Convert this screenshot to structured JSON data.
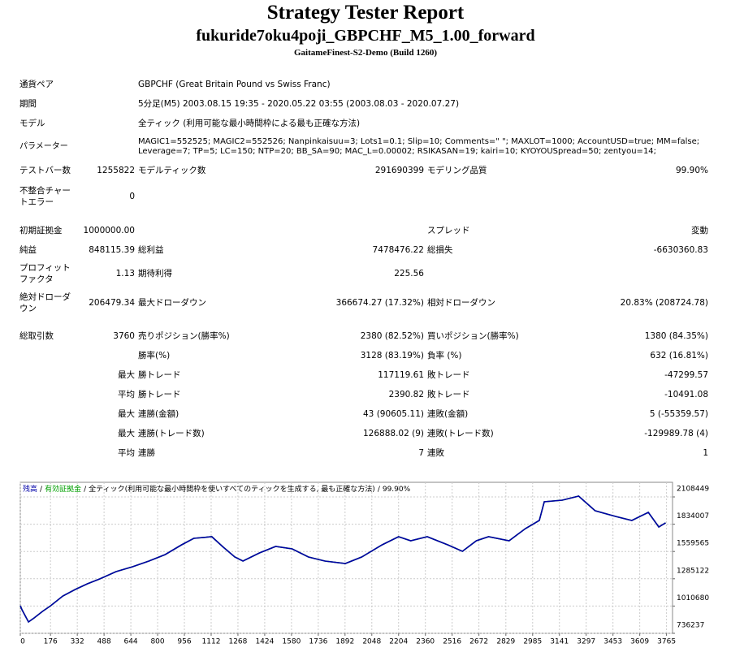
{
  "header": {
    "title": "Strategy Tester Report",
    "subtitle": "fukuride7oku4poji_GBPCHF_M5_1.00_forward",
    "build": "GaitameFinest-S2-Demo (Build 1260)"
  },
  "table": {
    "rows": [
      [
        "通貨ペア",
        "GBPCHF (Great Britain Pound vs Swiss Franc)"
      ],
      [
        "期間",
        "5分足(M5) 2003.08.15 19:35 - 2020.05.22 03:55 (2003.08.03 - 2020.07.27)"
      ],
      [
        "モデル",
        "全ティック (利用可能な最小時間枠による最も正確な方法)"
      ],
      [
        "パラメーター",
        "MAGIC1=552525; MAGIC2=552526; Nanpinkaisuu=3; Lots1=0.1; Slip=10; Comments=\" \"; MAXLOT=1000; AccountUSD=true; MM=false; Leverage=7; TP=5; LC=150; NTP=20; BB_SA=90; MAC_L=0.00002; RSIKASAN=19; kairi=10; KYOYOUSpread=50; zentyou=14;"
      ],
      [
        "テストバー数",
        "1255822",
        "モデルティック数",
        "291690399",
        "モデリング品質",
        "99.90%"
      ],
      [
        "不整合チャートエラー",
        "0"
      ],
      [
        "初期証拠金",
        "1000000.00",
        "スプレッド",
        "変動"
      ],
      [
        "純益",
        "848115.39",
        "総利益",
        "7478476.22",
        "総損失",
        "-6630360.83"
      ],
      [
        "プロフィットファクタ",
        "1.13",
        "期待利得",
        "225.56"
      ],
      [
        "絶対ドローダウン",
        "206479.34",
        "最大ドローダウン",
        "366674.27 (17.32%)",
        "相対ドローダウン",
        "20.83% (208724.78)"
      ],
      [
        "総取引数",
        "3760",
        "売りポジション(勝率%)",
        "2380 (82.52%)",
        "買いポジション(勝率%)",
        "1380 (84.35%)"
      ],
      [
        "勝率(%)",
        "3128 (83.19%)",
        "負率 (%)",
        "632 (16.81%)"
      ],
      [
        "最大",
        "勝トレード",
        "117119.61",
        "敗トレード",
        "-47299.57"
      ],
      [
        "平均",
        "勝トレード",
        "2390.82",
        "敗トレード",
        "-10491.08"
      ],
      [
        "最大",
        "連勝(金額)",
        "43 (90605.11)",
        "連敗(金額)",
        "5 (-55359.57)"
      ],
      [
        "最大",
        "連勝(トレード数)",
        "126888.02 (9)",
        "連敗(トレード数)",
        "-129989.78 (4)"
      ],
      [
        "平均",
        "連勝",
        "7",
        "連敗",
        "1"
      ]
    ]
  },
  "chart_data": {
    "type": "line",
    "separator": "/",
    "note": "全ティック(利用可能な最小時間枠を使いすべてのティックを生成する, 最も正確な方法)",
    "quality": "99.90%",
    "x": [
      0,
      10,
      48,
      81,
      129,
      177,
      248,
      320,
      391,
      463,
      558,
      654,
      749,
      844,
      940,
      1011,
      1116,
      1178,
      1250,
      1297,
      1393,
      1488,
      1584,
      1679,
      1775,
      1894,
      1989,
      2108,
      2204,
      2275,
      2371,
      2490,
      2576,
      2657,
      2728,
      2848,
      2943,
      3024,
      3053,
      3158,
      3253,
      3349,
      3468,
      3563,
      3659,
      3720,
      3760
    ],
    "series": [
      {
        "name": "有効証拠金",
        "color": "#00a000",
        "values": [
          1013900,
          973000,
          850600,
          891400,
          956800,
          1013900,
          1112000,
          1177300,
          1234500,
          1283500,
          1357000,
          1406000,
          1463200,
          1528500,
          1626500,
          1692000,
          1708200,
          1610200,
          1504000,
          1463200,
          1544900,
          1610200,
          1585800,
          1504000,
          1463200,
          1438700,
          1504000,
          1626500,
          1708200,
          1667400,
          1708200,
          1626500,
          1561100,
          1667400,
          1708200,
          1667400,
          1789800,
          1871500,
          2059600,
          2076000,
          2116800,
          1969800,
          1912400,
          1871500,
          1953200,
          1806300,
          1848115
        ]
      },
      {
        "name": "残高",
        "color": "#0000a8",
        "values": [
          1013900,
          973000,
          850600,
          891400,
          956800,
          1013900,
          1112000,
          1177300,
          1234500,
          1283500,
          1357000,
          1406000,
          1463200,
          1528500,
          1626500,
          1692000,
          1708200,
          1610200,
          1504000,
          1463200,
          1544900,
          1610200,
          1585800,
          1504000,
          1463200,
          1438700,
          1504000,
          1626500,
          1708200,
          1667400,
          1708200,
          1626500,
          1561100,
          1667400,
          1708200,
          1667400,
          1789800,
          1871500,
          2059600,
          2076000,
          2116800,
          1969800,
          1912400,
          1871500,
          1953200,
          1806300,
          1848115
        ]
      }
    ],
    "xlim": [
      0,
      3800
    ],
    "xticks": [
      0,
      176,
      332,
      488,
      644,
      800,
      956,
      1112,
      1268,
      1424,
      1580,
      1736,
      1892,
      2048,
      2204,
      2360,
      2516,
      2672,
      2829,
      2985,
      3141,
      3297,
      3453,
      3609,
      3765
    ],
    "ylim": [
      736237,
      2255470
    ],
    "yticks": [
      736237,
      1010680,
      1285122,
      1559565,
      1834007,
      2108449
    ],
    "grid": true
  }
}
